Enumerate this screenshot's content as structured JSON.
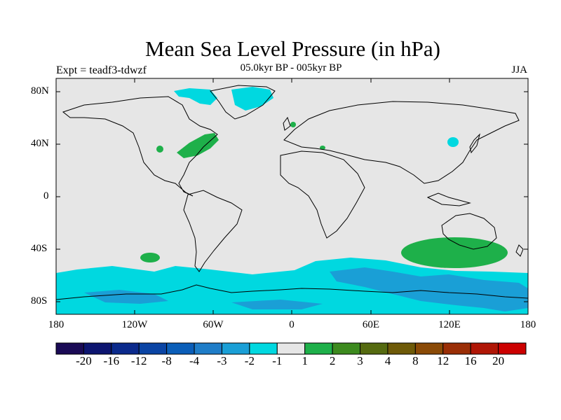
{
  "title": "Mean Sea Level Pressure (in hPa)",
  "subtitle": "05.0kyr BP - 005kyr BP",
  "experiment": "Expt = teadf3-tdwzf",
  "season": "JJA",
  "lat_ticks": [
    "80N",
    "40N",
    "0",
    "40S",
    "80S"
  ],
  "lon_ticks": [
    "180",
    "120W",
    "60W",
    "0",
    "60E",
    "120E",
    "180"
  ],
  "colorbar": {
    "colors": [
      "#1a0a55",
      "#0d1570",
      "#0b2a8c",
      "#0a44a4",
      "#0b5eb8",
      "#1f7dc8",
      "#1a9fd6",
      "#00d8e0",
      "#e6e6e6",
      "#1eb04a",
      "#3c8a1e",
      "#556a10",
      "#6e5a08",
      "#8a4a06",
      "#9a2e06",
      "#b01606",
      "#cc0000"
    ],
    "labels": [
      "-20",
      "-16",
      "-12",
      "-8",
      "-4",
      "-3",
      "-2",
      "-1",
      "1",
      "2",
      "3",
      "4",
      "8",
      "12",
      "16",
      "20"
    ]
  },
  "map": {
    "background_color": "#e6e6e6",
    "coastline_color": "#000000",
    "anomaly_colors": {
      "light_blue": "#00d8e0",
      "mid_blue": "#1a9fd6",
      "green": "#1eb04a"
    }
  }
}
